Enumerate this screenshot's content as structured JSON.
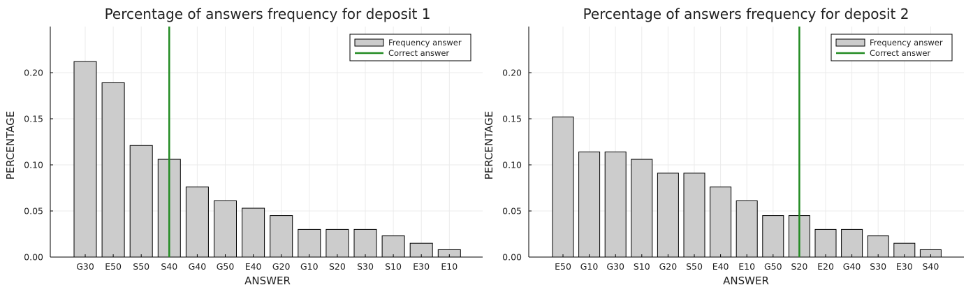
{
  "chart_data": [
    {
      "type": "bar",
      "title": "Percentage of answers frequency for deposit 1",
      "xlabel": "ANSWER",
      "ylabel": "PERCENTAGE",
      "ylim": [
        0,
        0.25
      ],
      "yticks": [
        "0.00",
        "0.05",
        "0.10",
        "0.15",
        "0.20"
      ],
      "categories": [
        "G30",
        "E50",
        "S50",
        "S40",
        "G40",
        "G50",
        "E40",
        "G20",
        "G10",
        "S20",
        "S30",
        "S10",
        "E30",
        "E10"
      ],
      "series": [
        {
          "name": "Frequency answer",
          "values": [
            0.212,
            0.189,
            0.121,
            0.106,
            0.076,
            0.061,
            0.053,
            0.045,
            0.03,
            0.03,
            0.03,
            0.023,
            0.015,
            0.008
          ]
        }
      ],
      "correct_answer": "S40",
      "correct_label": "Correct answer",
      "grid": true,
      "legend_position": "top-right",
      "bar_color": "#cccccc",
      "line_color": "#228b22"
    },
    {
      "type": "bar",
      "title": "Percentage of answers frequency for deposit 2",
      "xlabel": "ANSWER",
      "ylabel": "PERCENTAGE",
      "ylim": [
        0,
        0.25
      ],
      "yticks": [
        "0.00",
        "0.05",
        "0.10",
        "0.15",
        "0.20"
      ],
      "categories": [
        "E50",
        "G10",
        "G30",
        "S10",
        "G20",
        "S50",
        "E40",
        "E10",
        "G50",
        "S20",
        "E20",
        "G40",
        "S30",
        "E30",
        "S40"
      ],
      "series": [
        {
          "name": "Frequency answer",
          "values": [
            0.152,
            0.114,
            0.114,
            0.106,
            0.091,
            0.091,
            0.076,
            0.061,
            0.045,
            0.045,
            0.03,
            0.03,
            0.023,
            0.015,
            0.008
          ]
        }
      ],
      "correct_answer": "S20",
      "correct_label": "Correct answer",
      "grid": true,
      "legend_position": "top-right",
      "bar_color": "#cccccc",
      "line_color": "#228b22"
    }
  ]
}
